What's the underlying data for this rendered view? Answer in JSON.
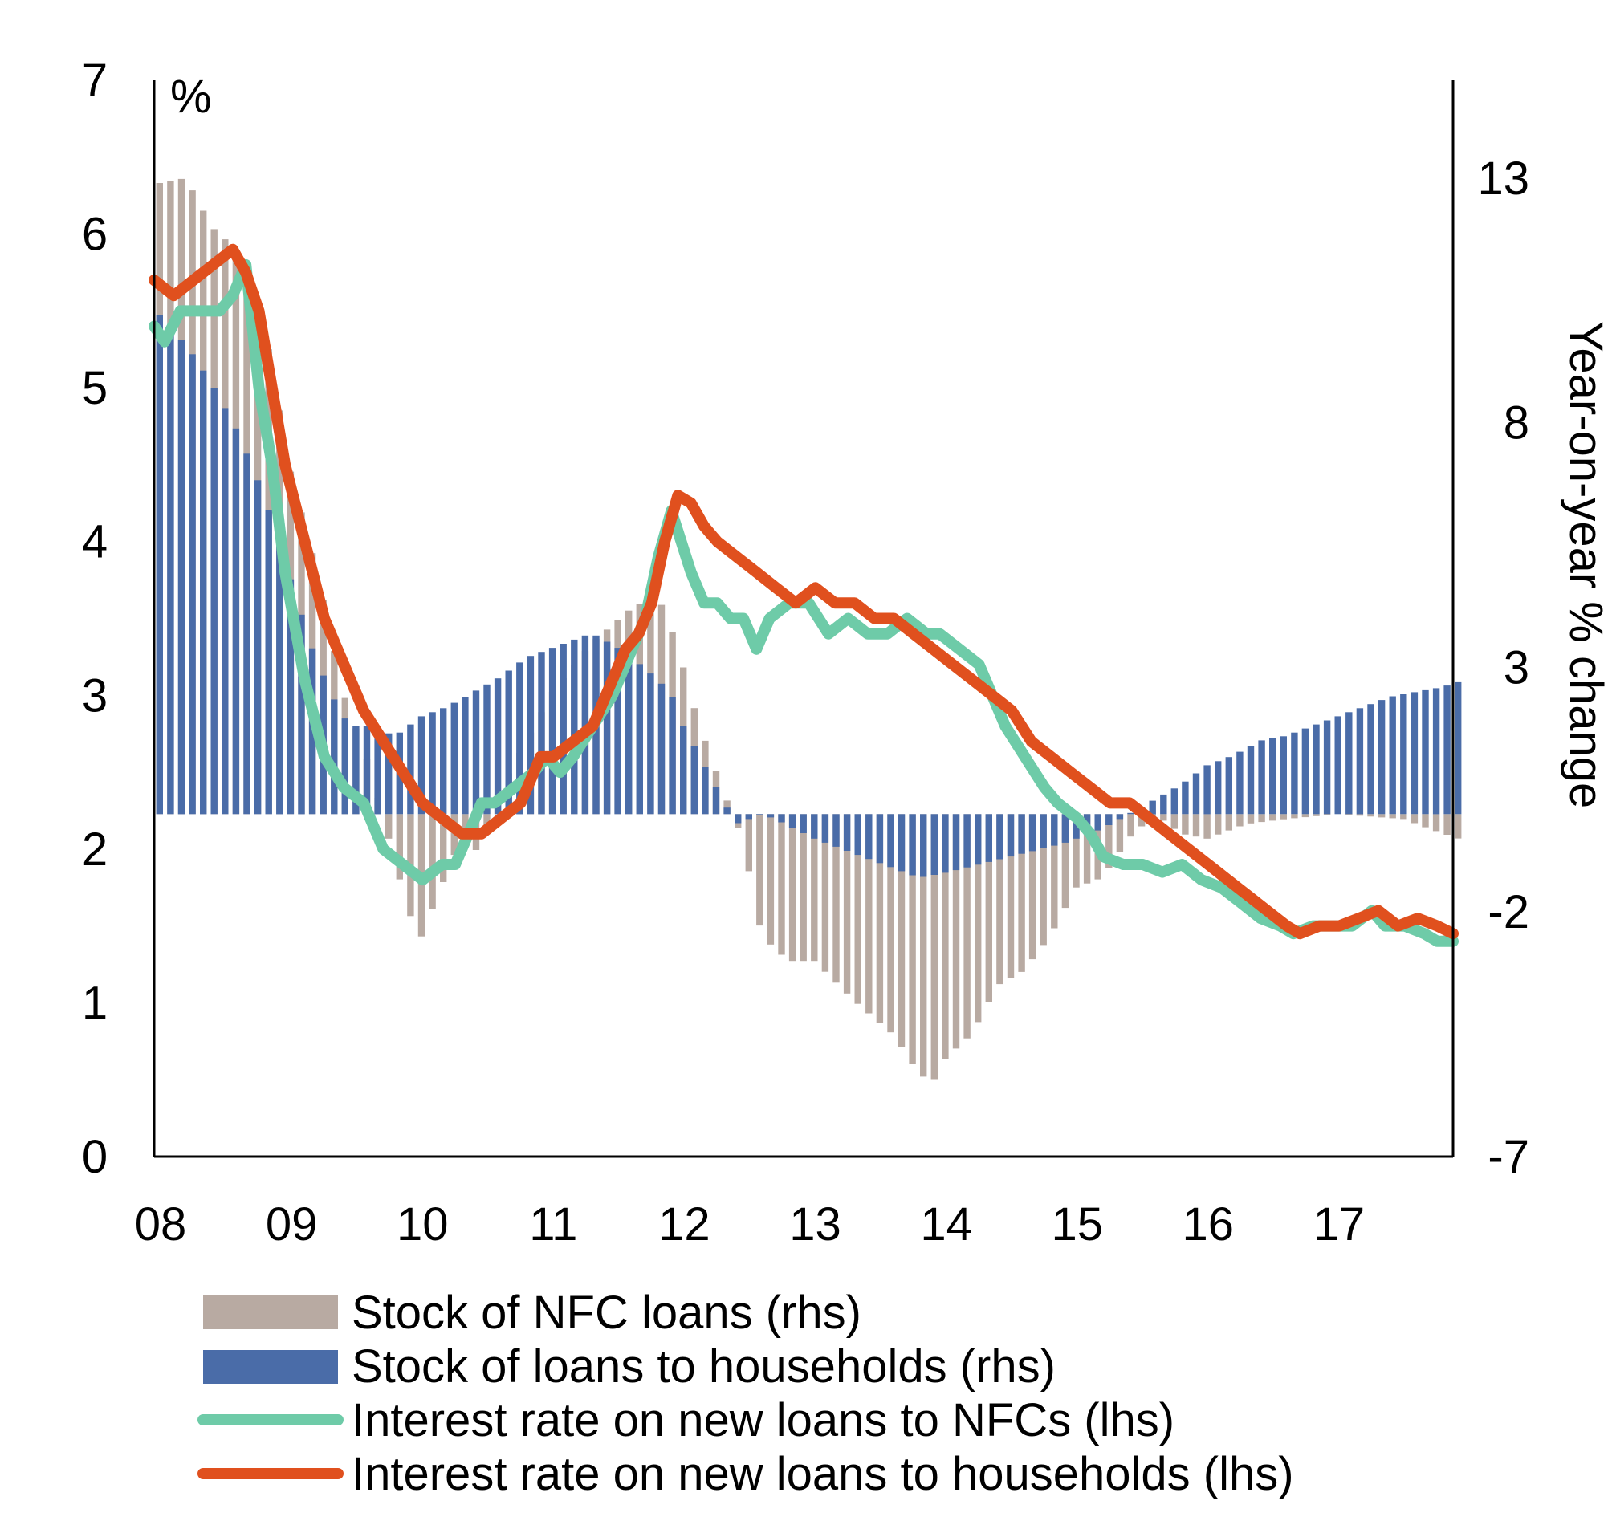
{
  "chart_data": {
    "type": "bar+line",
    "unit_label": "%",
    "left_axis": {
      "ticks": [
        "0",
        "1",
        "2",
        "3",
        "4",
        "5",
        "6",
        "7"
      ],
      "range": [
        0,
        7
      ]
    },
    "right_axis": {
      "title": "Year-on-year % change",
      "ticks": [
        "-7",
        "-2",
        "3",
        "8",
        "13"
      ],
      "range": [
        -7,
        15
      ]
    },
    "x_axis": {
      "ticks": [
        "08",
        "09",
        "10",
        "11",
        "12",
        "13",
        "14",
        "15",
        "16",
        "17"
      ],
      "range": [
        2008.0,
        2017.92
      ]
    },
    "legend": [
      {
        "label": "Stock of NFC loans (rhs)",
        "kind": "bar",
        "color": "#b8aaa2"
      },
      {
        "label": "Stock of loans to households (rhs)",
        "kind": "bar",
        "color": "#4a6ca8"
      },
      {
        "label": "Interest rate on new loans to NFCs (lhs)",
        "kind": "line",
        "color": "#6ecba8"
      },
      {
        "label": "Interest rate on new loans to households (lhs)",
        "kind": "line",
        "color": "#e0501e"
      }
    ],
    "series": [
      {
        "name": "Stock of NFC loans (rhs)",
        "axis": "right",
        "knots": [
          [
            2008.0,
            12.9
          ],
          [
            2008.2,
            13.0
          ],
          [
            2008.4,
            12.0
          ],
          [
            2008.6,
            11.5
          ],
          [
            2008.8,
            10.0
          ],
          [
            2009.0,
            7.0
          ],
          [
            2009.2,
            5.0
          ],
          [
            2009.4,
            2.5
          ],
          [
            2009.6,
            1.0
          ],
          [
            2009.75,
            -0.5
          ],
          [
            2009.9,
            -2.0
          ],
          [
            2010.0,
            -2.5
          ],
          [
            2010.15,
            -1.5
          ],
          [
            2010.3,
            -0.5
          ],
          [
            2010.45,
            -0.8
          ],
          [
            2010.6,
            0.5
          ],
          [
            2010.8,
            1.5
          ],
          [
            2011.0,
            2.5
          ],
          [
            2011.3,
            3.5
          ],
          [
            2011.6,
            4.2
          ],
          [
            2011.8,
            4.5
          ],
          [
            2011.95,
            3.5
          ],
          [
            2012.1,
            2.0
          ],
          [
            2012.3,
            0.5
          ],
          [
            2012.45,
            -0.5
          ],
          [
            2012.6,
            -2.5
          ],
          [
            2012.8,
            -3.0
          ],
          [
            2013.0,
            -3.0
          ],
          [
            2013.3,
            -3.8
          ],
          [
            2013.6,
            -4.5
          ],
          [
            2013.8,
            -5.3
          ],
          [
            2013.9,
            -5.5
          ],
          [
            2014.0,
            -5.0
          ],
          [
            2014.2,
            -4.5
          ],
          [
            2014.4,
            -3.5
          ],
          [
            2014.6,
            -3.2
          ],
          [
            2014.8,
            -2.5
          ],
          [
            2015.0,
            -1.5
          ],
          [
            2015.2,
            -1.3
          ],
          [
            2015.4,
            -0.5
          ],
          [
            2015.6,
            0.0
          ],
          [
            2015.8,
            -0.4
          ],
          [
            2016.0,
            -0.5
          ],
          [
            2016.3,
            -0.2
          ],
          [
            2016.6,
            -0.1
          ],
          [
            2017.0,
            0.0
          ],
          [
            2017.5,
            -0.1
          ],
          [
            2017.7,
            -0.3
          ],
          [
            2017.92,
            -0.5
          ]
        ]
      },
      {
        "name": "Stock of loans to households (rhs)",
        "axis": "right",
        "knots": [
          [
            2008.0,
            10.2
          ],
          [
            2008.2,
            9.6
          ],
          [
            2008.4,
            8.8
          ],
          [
            2008.6,
            7.8
          ],
          [
            2008.8,
            6.5
          ],
          [
            2009.0,
            4.8
          ],
          [
            2009.15,
            3.5
          ],
          [
            2009.3,
            2.5
          ],
          [
            2009.45,
            1.8
          ],
          [
            2009.6,
            1.8
          ],
          [
            2009.8,
            1.6
          ],
          [
            2010.0,
            2.0
          ],
          [
            2010.2,
            2.2
          ],
          [
            2010.4,
            2.5
          ],
          [
            2010.6,
            2.8
          ],
          [
            2010.8,
            3.2
          ],
          [
            2011.0,
            3.4
          ],
          [
            2011.2,
            3.6
          ],
          [
            2011.3,
            3.7
          ],
          [
            2011.5,
            3.4
          ],
          [
            2011.7,
            3.0
          ],
          [
            2011.9,
            2.5
          ],
          [
            2012.0,
            1.8
          ],
          [
            2012.2,
            0.8
          ],
          [
            2012.4,
            -0.2
          ],
          [
            2012.6,
            0.0
          ],
          [
            2012.7,
            -0.1
          ],
          [
            2013.0,
            -0.5
          ],
          [
            2013.3,
            -0.8
          ],
          [
            2013.6,
            -1.1
          ],
          [
            2013.8,
            -1.3
          ],
          [
            2014.0,
            -1.2
          ],
          [
            2014.3,
            -1.0
          ],
          [
            2014.6,
            -0.8
          ],
          [
            2014.9,
            -0.6
          ],
          [
            2015.2,
            -0.3
          ],
          [
            2015.4,
            0.0
          ],
          [
            2015.6,
            0.3
          ],
          [
            2015.8,
            0.6
          ],
          [
            2016.0,
            1.0
          ],
          [
            2016.2,
            1.2
          ],
          [
            2016.4,
            1.5
          ],
          [
            2016.6,
            1.6
          ],
          [
            2016.8,
            1.8
          ],
          [
            2017.0,
            2.0
          ],
          [
            2017.2,
            2.2
          ],
          [
            2017.4,
            2.4
          ],
          [
            2017.6,
            2.5
          ],
          [
            2017.8,
            2.6
          ],
          [
            2017.92,
            2.7
          ]
        ]
      },
      {
        "name": "Interest rate on new loans to NFCs (lhs)",
        "axis": "left",
        "knots": [
          [
            2008.0,
            5.4
          ],
          [
            2008.08,
            5.3
          ],
          [
            2008.2,
            5.5
          ],
          [
            2008.35,
            5.5
          ],
          [
            2008.5,
            5.5
          ],
          [
            2008.6,
            5.6
          ],
          [
            2008.7,
            5.8
          ],
          [
            2008.8,
            5.0
          ],
          [
            2008.9,
            4.5
          ],
          [
            2009.0,
            3.8
          ],
          [
            2009.15,
            3.1
          ],
          [
            2009.3,
            2.6
          ],
          [
            2009.45,
            2.4
          ],
          [
            2009.6,
            2.3
          ],
          [
            2009.75,
            2.0
          ],
          [
            2009.9,
            1.9
          ],
          [
            2010.05,
            1.8
          ],
          [
            2010.2,
            1.9
          ],
          [
            2010.3,
            1.9
          ],
          [
            2010.4,
            2.1
          ],
          [
            2010.5,
            2.3
          ],
          [
            2010.6,
            2.3
          ],
          [
            2010.75,
            2.4
          ],
          [
            2010.9,
            2.5
          ],
          [
            2011.0,
            2.6
          ],
          [
            2011.1,
            2.5
          ],
          [
            2011.2,
            2.6
          ],
          [
            2011.35,
            2.8
          ],
          [
            2011.5,
            3.0
          ],
          [
            2011.65,
            3.3
          ],
          [
            2011.75,
            3.5
          ],
          [
            2011.85,
            3.9
          ],
          [
            2011.95,
            4.2
          ],
          [
            2012.1,
            3.8
          ],
          [
            2012.2,
            3.6
          ],
          [
            2012.3,
            3.6
          ],
          [
            2012.4,
            3.5
          ],
          [
            2012.5,
            3.5
          ],
          [
            2012.6,
            3.3
          ],
          [
            2012.7,
            3.5
          ],
          [
            2012.85,
            3.6
          ],
          [
            2013.0,
            3.6
          ],
          [
            2013.15,
            3.4
          ],
          [
            2013.3,
            3.5
          ],
          [
            2013.45,
            3.4
          ],
          [
            2013.6,
            3.4
          ],
          [
            2013.75,
            3.5
          ],
          [
            2013.9,
            3.4
          ],
          [
            2014.0,
            3.4
          ],
          [
            2014.15,
            3.3
          ],
          [
            2014.3,
            3.2
          ],
          [
            2014.5,
            2.8
          ],
          [
            2014.65,
            2.6
          ],
          [
            2014.8,
            2.4
          ],
          [
            2014.9,
            2.3
          ],
          [
            2015.05,
            2.2
          ],
          [
            2015.15,
            2.1
          ],
          [
            2015.25,
            1.95
          ],
          [
            2015.4,
            1.9
          ],
          [
            2015.55,
            1.9
          ],
          [
            2015.7,
            1.85
          ],
          [
            2015.85,
            1.9
          ],
          [
            2016.0,
            1.8
          ],
          [
            2016.15,
            1.75
          ],
          [
            2016.3,
            1.65
          ],
          [
            2016.45,
            1.55
          ],
          [
            2016.6,
            1.5
          ],
          [
            2016.7,
            1.45
          ],
          [
            2016.85,
            1.5
          ],
          [
            2017.0,
            1.5
          ],
          [
            2017.15,
            1.5
          ],
          [
            2017.3,
            1.6
          ],
          [
            2017.4,
            1.5
          ],
          [
            2017.55,
            1.5
          ],
          [
            2017.7,
            1.45
          ],
          [
            2017.8,
            1.4
          ],
          [
            2017.92,
            1.4
          ]
        ]
      },
      {
        "name": "Interest rate on new loans to households (lhs)",
        "axis": "left",
        "knots": [
          [
            2008.0,
            5.7
          ],
          [
            2008.15,
            5.6
          ],
          [
            2008.3,
            5.7
          ],
          [
            2008.45,
            5.8
          ],
          [
            2008.6,
            5.9
          ],
          [
            2008.7,
            5.75
          ],
          [
            2008.8,
            5.5
          ],
          [
            2008.9,
            5.0
          ],
          [
            2009.0,
            4.5
          ],
          [
            2009.15,
            4.0
          ],
          [
            2009.3,
            3.5
          ],
          [
            2009.45,
            3.2
          ],
          [
            2009.6,
            2.9
          ],
          [
            2009.75,
            2.7
          ],
          [
            2009.9,
            2.5
          ],
          [
            2010.05,
            2.3
          ],
          [
            2010.2,
            2.2
          ],
          [
            2010.35,
            2.1
          ],
          [
            2010.5,
            2.1
          ],
          [
            2010.65,
            2.2
          ],
          [
            2010.8,
            2.3
          ],
          [
            2010.95,
            2.6
          ],
          [
            2011.05,
            2.6
          ],
          [
            2011.2,
            2.7
          ],
          [
            2011.35,
            2.8
          ],
          [
            2011.5,
            3.1
          ],
          [
            2011.6,
            3.3
          ],
          [
            2011.7,
            3.4
          ],
          [
            2011.8,
            3.6
          ],
          [
            2011.9,
            4.0
          ],
          [
            2012.0,
            4.3
          ],
          [
            2012.1,
            4.25
          ],
          [
            2012.2,
            4.1
          ],
          [
            2012.3,
            4.0
          ],
          [
            2012.45,
            3.9
          ],
          [
            2012.6,
            3.8
          ],
          [
            2012.75,
            3.7
          ],
          [
            2012.9,
            3.6
          ],
          [
            2013.05,
            3.7
          ],
          [
            2013.2,
            3.6
          ],
          [
            2013.35,
            3.6
          ],
          [
            2013.5,
            3.5
          ],
          [
            2013.65,
            3.5
          ],
          [
            2013.8,
            3.4
          ],
          [
            2013.95,
            3.3
          ],
          [
            2014.1,
            3.2
          ],
          [
            2014.25,
            3.1
          ],
          [
            2014.4,
            3.0
          ],
          [
            2014.55,
            2.9
          ],
          [
            2014.7,
            2.7
          ],
          [
            2014.85,
            2.6
          ],
          [
            2015.0,
            2.5
          ],
          [
            2015.15,
            2.4
          ],
          [
            2015.3,
            2.3
          ],
          [
            2015.45,
            2.3
          ],
          [
            2015.6,
            2.2
          ],
          [
            2015.75,
            2.1
          ],
          [
            2015.9,
            2.0
          ],
          [
            2016.05,
            1.9
          ],
          [
            2016.2,
            1.8
          ],
          [
            2016.35,
            1.7
          ],
          [
            2016.5,
            1.6
          ],
          [
            2016.65,
            1.5
          ],
          [
            2016.75,
            1.45
          ],
          [
            2016.9,
            1.5
          ],
          [
            2017.05,
            1.5
          ],
          [
            2017.2,
            1.55
          ],
          [
            2017.35,
            1.6
          ],
          [
            2017.5,
            1.5
          ],
          [
            2017.65,
            1.55
          ],
          [
            2017.8,
            1.5
          ],
          [
            2017.92,
            1.45
          ]
        ]
      }
    ]
  }
}
